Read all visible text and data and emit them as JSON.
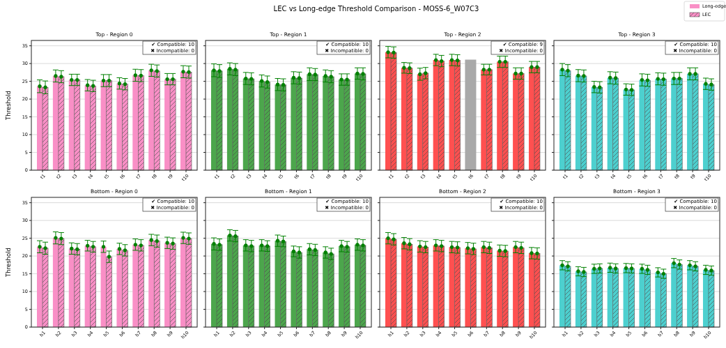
{
  "chart_data": [
    {
      "type": "bar",
      "title": "Top - Region 0",
      "ylabel": "Threshold",
      "categories": [
        "t1",
        "t2",
        "t3",
        "t4",
        "t5",
        "t6",
        "t7",
        "t8",
        "t9",
        "t10"
      ],
      "ylim": [
        0,
        36.5
      ],
      "yticks": [
        0,
        5,
        10,
        15,
        20,
        25,
        30,
        35
      ],
      "grid": "y",
      "marker": "circle",
      "legend": "top right",
      "annotations": [
        "LEC vs Long-edge Threshold Comparison - MOSS-6_W07C3",
        "✔ Compatible: 10",
        "✖ Incompatible: 0"
      ],
      "series": [
        {
          "name": "Long-edge",
          "color": "#f98fc6",
          "values": [
            23.6,
            26.5,
            25.4,
            23.9,
            25.2,
            24.4,
            26.7,
            28.1,
            25.6,
            27.7
          ],
          "errors": [
            1.8,
            1.7,
            1.6,
            1.6,
            1.7,
            1.6,
            1.7,
            1.7,
            1.6,
            1.7
          ]
        },
        {
          "name": "LEC",
          "color": "#f98fc6",
          "values": [
            23.3,
            26.3,
            25.4,
            23.7,
            25.2,
            24.2,
            26.6,
            27.9,
            25.6,
            27.6
          ],
          "errors": [
            1.8,
            1.7,
            1.6,
            1.6,
            1.7,
            1.6,
            1.7,
            1.7,
            1.6,
            1.7
          ]
        }
      ]
    },
    {
      "type": "bar",
      "title": "Top - Region 1",
      "categories": [
        "t1",
        "t2",
        "t3",
        "t4",
        "t5",
        "t6",
        "t7",
        "t8",
        "t9",
        "t10"
      ],
      "ylim": [
        0,
        36.5
      ],
      "yticks": [
        0,
        5,
        10,
        15,
        20,
        25,
        30,
        35
      ],
      "tick_labels": "x",
      "grid": "y",
      "marker": "circle",
      "annotations": [
        "✔ Compatible: 10",
        "✖ Incompatible: 0"
      ],
      "series": [
        {
          "color": "#4ca64c",
          "values": [
            28.1,
            28.5,
            25.8,
            25.1,
            24.1,
            26.0,
            27.0,
            26.5,
            25.5,
            27.2
          ],
          "errors": [
            1.8,
            1.7,
            1.7,
            1.7,
            1.7,
            1.7,
            1.8,
            1.7,
            1.6,
            1.6
          ]
        },
        {
          "color": "#4ca64c",
          "values": [
            27.9,
            28.3,
            25.7,
            24.8,
            24.0,
            25.9,
            26.9,
            26.3,
            25.5,
            27.1
          ],
          "errors": [
            1.8,
            1.7,
            1.7,
            1.7,
            1.7,
            1.7,
            1.7,
            1.7,
            1.6,
            1.7
          ]
        }
      ]
    },
    {
      "type": "bar",
      "title": "Top - Region 2",
      "categories": [
        "t1",
        "t2",
        "t3",
        "t4",
        "t5",
        "t6",
        "t7",
        "t8",
        "t9",
        "t10"
      ],
      "ylim": [
        0,
        36.5
      ],
      "yticks": [
        0,
        5,
        10,
        15,
        20,
        25,
        30,
        35
      ],
      "tick_labels": "x",
      "grid": "y",
      "marker": "circle",
      "annotations": [
        "✔ Compatible: 9",
        "✖ Incompatible: 0"
      ],
      "series": [
        {
          "color": "#ff5050",
          "values": [
            33.2,
            28.8,
            27.0,
            31.0,
            31.0,
            null,
            28.3,
            30.5,
            27.2,
            29.0
          ],
          "errors": [
            1.6,
            1.5,
            1.7,
            1.6,
            1.6,
            null,
            1.5,
            1.6,
            1.6,
            1.6
          ]
        },
        {
          "color": "#ff5050",
          "values": [
            33.1,
            28.7,
            27.3,
            30.7,
            30.9,
            null,
            28.3,
            30.5,
            27.2,
            29.0
          ],
          "errors": [
            1.6,
            1.5,
            1.6,
            1.6,
            1.6,
            null,
            1.5,
            1.6,
            1.6,
            1.6
          ]
        },
        {
          "color": "#a9a9a9",
          "marker": "none",
          "values": [
            null,
            null,
            null,
            null,
            null,
            31.1,
            null,
            null,
            null,
            null
          ]
        }
      ]
    },
    {
      "type": "bar",
      "title": "Top - Region 3",
      "categories": [
        "t1",
        "t2",
        "t3",
        "t4",
        "t5",
        "t6",
        "t7",
        "t8",
        "t9",
        "t10"
      ],
      "ylim": [
        0,
        36.5
      ],
      "yticks": [
        0,
        5,
        10,
        15,
        20,
        25,
        30,
        35
      ],
      "tick_labels": "x",
      "grid": "y",
      "marker": "circle",
      "annotations": [
        "✔ Compatible: 10",
        "✖ Incompatible: 0"
      ],
      "series": [
        {
          "color": "#4dd0cf",
          "values": [
            28.3,
            26.6,
            23.4,
            26.0,
            22.7,
            25.4,
            25.7,
            25.8,
            27.1,
            24.3
          ],
          "errors": [
            1.7,
            1.7,
            1.6,
            1.7,
            1.6,
            1.7,
            1.7,
            1.7,
            1.7,
            1.6
          ]
        },
        {
          "color": "#4dd0cf",
          "values": [
            28.0,
            26.5,
            23.3,
            25.9,
            22.6,
            25.3,
            25.6,
            25.8,
            27.1,
            24.1
          ],
          "errors": [
            1.7,
            1.7,
            1.6,
            1.7,
            1.6,
            1.7,
            1.7,
            1.7,
            1.7,
            1.6
          ]
        }
      ]
    },
    {
      "type": "bar",
      "title": "Bottom - Region 0",
      "ylabel": "Threshold",
      "categories": [
        "b1",
        "b2",
        "b3",
        "b4",
        "b5",
        "b6",
        "b7",
        "b8",
        "b9",
        "b10"
      ],
      "ylim": [
        0,
        36.5
      ],
      "yticks": [
        0,
        5,
        10,
        15,
        20,
        25,
        30,
        35
      ],
      "grid": "y",
      "marker": "circle",
      "annotations": [
        "✔ Compatible: 10",
        "✖ Incompatible: 0"
      ],
      "series": [
        {
          "color": "#f98fc6",
          "values": [
            22.6,
            25.1,
            22.1,
            22.9,
            22.6,
            22.0,
            23.2,
            24.5,
            23.7,
            25.1
          ],
          "errors": [
            1.7,
            1.7,
            1.6,
            1.5,
            1.6,
            1.6,
            1.6,
            1.6,
            1.6,
            1.6
          ]
        },
        {
          "color": "#f98fc6",
          "values": [
            22.2,
            24.9,
            21.9,
            22.6,
            19.8,
            21.6,
            23.0,
            24.2,
            23.5,
            24.9
          ],
          "errors": [
            1.7,
            1.7,
            1.6,
            1.5,
            1.6,
            1.6,
            1.6,
            1.7,
            1.6,
            1.6
          ]
        }
      ]
    },
    {
      "type": "bar",
      "title": "Bottom - Region 1",
      "categories": [
        "b1",
        "b2",
        "b3",
        "b4",
        "b5",
        "b6",
        "b7",
        "b8",
        "b9",
        "b10"
      ],
      "ylim": [
        0,
        36.5
      ],
      "yticks": [
        0,
        5,
        10,
        15,
        20,
        25,
        30,
        35
      ],
      "tick_labels": "x",
      "grid": "y",
      "marker": "circle",
      "annotations": [
        "✔ Compatible: 10",
        "✖ Incompatible: 0"
      ],
      "series": [
        {
          "color": "#4ca64c",
          "values": [
            23.4,
            25.8,
            23.0,
            23.0,
            24.3,
            21.3,
            21.9,
            21.0,
            22.8,
            23.2
          ],
          "errors": [
            1.7,
            1.6,
            1.6,
            1.6,
            1.6,
            1.5,
            1.6,
            1.6,
            1.6,
            1.6
          ]
        },
        {
          "color": "#4ca64c",
          "values": [
            23.2,
            25.6,
            22.8,
            22.8,
            24.1,
            21.0,
            21.7,
            20.6,
            22.6,
            23.0
          ],
          "errors": [
            1.6,
            1.6,
            1.6,
            1.5,
            1.5,
            1.6,
            1.6,
            1.6,
            1.5,
            1.6
          ]
        }
      ]
    },
    {
      "type": "bar",
      "title": "Bottom - Region 2",
      "categories": [
        "b1",
        "b2",
        "b3",
        "b4",
        "b5",
        "b6",
        "b7",
        "b8",
        "b9",
        "b10"
      ],
      "ylim": [
        0,
        36.5
      ],
      "yticks": [
        0,
        5,
        10,
        15,
        20,
        25,
        30,
        35
      ],
      "tick_labels": "x",
      "grid": "y",
      "marker": "circle",
      "annotations": [
        "✔ Compatible: 10",
        "✖ Incompatible: 0"
      ],
      "series": [
        {
          "color": "#ff5050",
          "values": [
            25.0,
            23.6,
            22.7,
            23.0,
            22.5,
            22.2,
            22.5,
            21.5,
            22.5,
            20.8
          ],
          "errors": [
            1.6,
            1.6,
            1.6,
            1.6,
            1.6,
            1.6,
            1.6,
            1.6,
            1.6,
            1.6
          ]
        },
        {
          "color": "#ff5050",
          "values": [
            24.7,
            23.3,
            22.5,
            22.8,
            22.4,
            22.0,
            22.3,
            21.4,
            22.3,
            20.7
          ],
          "errors": [
            1.6,
            1.6,
            1.6,
            1.6,
            1.6,
            1.6,
            1.6,
            1.6,
            1.6,
            1.6
          ]
        }
      ]
    },
    {
      "type": "bar",
      "title": "Bottom - Region 3",
      "categories": [
        "b1",
        "b2",
        "b3",
        "b4",
        "b5",
        "b6",
        "b7",
        "b8",
        "b9",
        "b10"
      ],
      "ylim": [
        0,
        36.5
      ],
      "yticks": [
        0,
        5,
        10,
        15,
        20,
        25,
        30,
        35
      ],
      "tick_labels": "x",
      "grid": "y",
      "marker": "circle",
      "annotations": [
        "✔ Compatible: 10",
        "✖ Incompatible: 0"
      ],
      "series": [
        {
          "color": "#4dd0cf",
          "values": [
            17.4,
            15.7,
            16.4,
            16.7,
            16.6,
            16.4,
            15.4,
            18.0,
            17.4,
            16.1
          ],
          "errors": [
            1.3,
            1.3,
            1.3,
            1.3,
            1.3,
            1.3,
            1.3,
            1.3,
            1.3,
            1.3
          ]
        },
        {
          "color": "#4dd0cf",
          "values": [
            17.1,
            15.5,
            16.5,
            16.5,
            16.5,
            16.1,
            15.0,
            17.6,
            17.1,
            15.9
          ],
          "errors": [
            1.3,
            1.3,
            1.3,
            1.3,
            1.3,
            1.3,
            1.3,
            1.3,
            1.3,
            1.3
          ]
        }
      ]
    }
  ]
}
